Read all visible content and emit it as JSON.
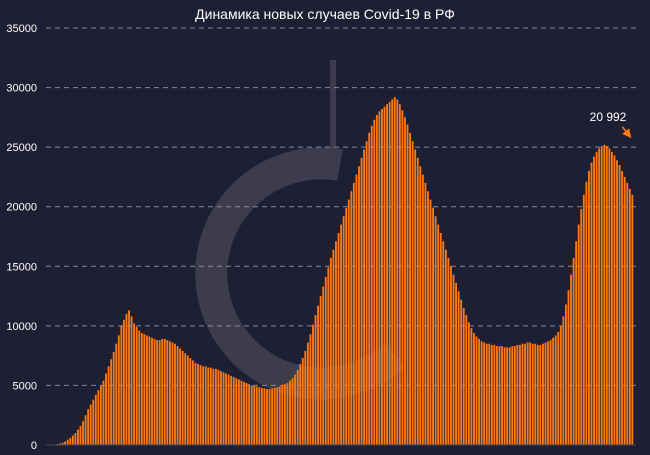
{
  "chart_data": {
    "type": "bar",
    "title": "Динамика новых случаев Covid-19 в РФ",
    "xlabel": "",
    "ylabel": "",
    "ylim": [
      0,
      35000
    ],
    "y_ticks": [
      "0",
      "5000",
      "10000",
      "15000",
      "20000",
      "25000",
      "30000",
      "35000"
    ],
    "grid": true,
    "x_tick_labels_visible": false,
    "annotation": {
      "text": "20 992",
      "value": 20992,
      "target": "last bar"
    },
    "colors": {
      "bar": "#ff7a12",
      "background": "#1f1f33",
      "grid": "#8a8a9a",
      "text": "#ffffff"
    },
    "series": [
      {
        "values": [
          50,
          80,
          120,
          200,
          300,
          450,
          600,
          800,
          1000,
          1300,
          1600,
          2000,
          2500,
          3000,
          3400,
          3800,
          4200,
          4600,
          5000,
          5400,
          6000,
          6600,
          7200,
          7800,
          8500,
          9200,
          10000,
          10500,
          11000,
          11300,
          10800,
          10200,
          9900,
          9600,
          9400,
          9300,
          9200,
          9100,
          9000,
          8900,
          8800,
          8800,
          8900,
          8900,
          8800,
          8700,
          8600,
          8500,
          8300,
          8100,
          7900,
          7700,
          7500,
          7300,
          7100,
          6900,
          6800,
          6700,
          6600,
          6600,
          6500,
          6500,
          6400,
          6400,
          6300,
          6200,
          6100,
          6000,
          5900,
          5800,
          5700,
          5600,
          5500,
          5400,
          5300,
          5200,
          5100,
          5000,
          4950,
          4900,
          4850,
          4800,
          4750,
          4700,
          4700,
          4750,
          4800,
          4850,
          4900,
          5000,
          5100,
          5200,
          5400,
          5600,
          5900,
          6300,
          6800,
          7300,
          7900,
          8600,
          9300,
          10100,
          10900,
          11700,
          12500,
          13300,
          14100,
          14900,
          15700,
          16400,
          17100,
          17800,
          18500,
          19200,
          19900,
          20600,
          21300,
          22000,
          22700,
          23400,
          24100,
          24800,
          25500,
          26200,
          26800,
          27300,
          27700,
          28000,
          28200,
          28400,
          28600,
          28800,
          29000,
          29200,
          29000,
          28600,
          28100,
          27500,
          26900,
          26200,
          25500,
          24800,
          24100,
          23400,
          22700,
          22000,
          21300,
          20600,
          19900,
          19200,
          18500,
          17800,
          17100,
          16400,
          15700,
          15000,
          14300,
          13600,
          12900,
          12200,
          11500,
          10900,
          10300,
          9800,
          9400,
          9100,
          8900,
          8700,
          8600,
          8500,
          8500,
          8400,
          8400,
          8300,
          8300,
          8300,
          8200,
          8200,
          8200,
          8300,
          8300,
          8400,
          8400,
          8500,
          8500,
          8600,
          8600,
          8500,
          8500,
          8400,
          8400,
          8500,
          8600,
          8700,
          8800,
          9000,
          9200,
          9500,
          10000,
          10800,
          11800,
          13000,
          14300,
          15700,
          17100,
          18500,
          19800,
          21000,
          22100,
          23000,
          23700,
          24200,
          24600,
          24900,
          25100,
          25200,
          25100,
          24900,
          24600,
          24300,
          23900,
          23500,
          23000,
          22500,
          22000,
          21500,
          20992
        ]
      }
    ]
  }
}
